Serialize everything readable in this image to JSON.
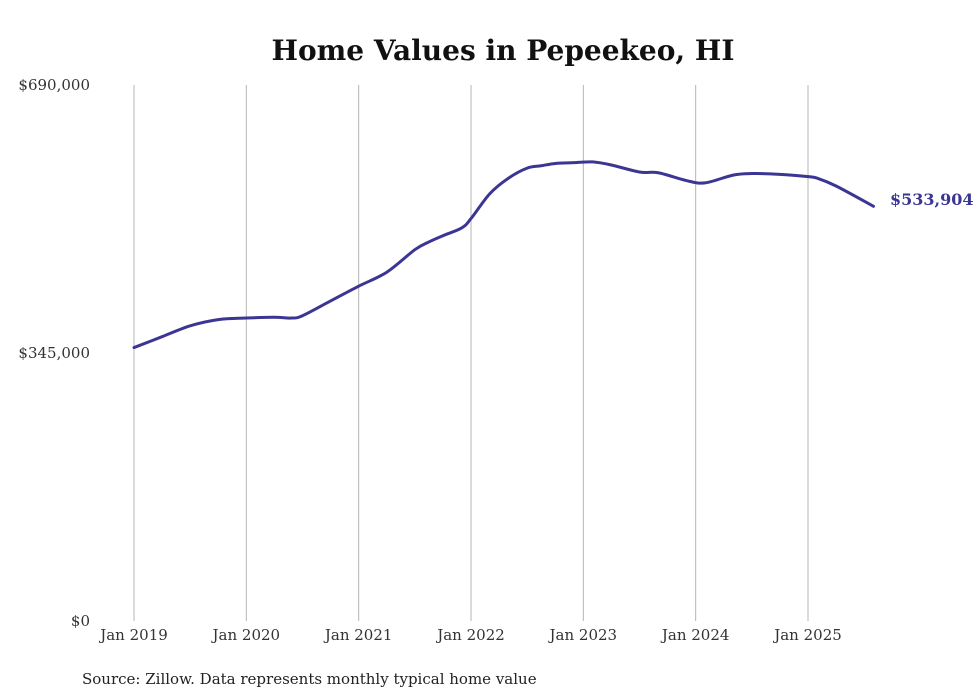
{
  "chart_data": {
    "type": "line",
    "title": "Home Values in Pepeekeo, HI",
    "xlabel": "",
    "ylabel": "",
    "ylim": [
      0,
      690000
    ],
    "y_ticks": [
      {
        "value": 0,
        "label": "$0"
      },
      {
        "value": 345000,
        "label": "$345,000"
      },
      {
        "value": 690000,
        "label": "$690,000"
      }
    ],
    "x_ticks": [
      {
        "value": 2019.0,
        "label": "Jan 2019"
      },
      {
        "value": 2020.0,
        "label": "Jan 2020"
      },
      {
        "value": 2021.0,
        "label": "Jan 2021"
      },
      {
        "value": 2022.0,
        "label": "Jan 2022"
      },
      {
        "value": 2023.0,
        "label": "Jan 2023"
      },
      {
        "value": 2024.0,
        "label": "Jan 2024"
      },
      {
        "value": 2025.0,
        "label": "Jan 2025"
      }
    ],
    "xlim": [
      2019.0,
      2025.583
    ],
    "grid": "vertical",
    "series": [
      {
        "name": "Typical home value",
        "color": "#3b3593",
        "x": [
          2019.0,
          2019.25,
          2019.5,
          2019.75,
          2020.0,
          2020.25,
          2020.4,
          2020.5,
          2020.75,
          2021.0,
          2021.25,
          2021.5,
          2021.625,
          2021.75,
          2021.917,
          2022.0,
          2022.167,
          2022.333,
          2022.5,
          2022.625,
          2022.75,
          2022.917,
          2023.083,
          2023.25,
          2023.5,
          2023.667,
          2023.917,
          2024.083,
          2024.333,
          2024.5,
          2024.75,
          2025.0,
          2025.083,
          2025.25,
          2025.583
        ],
        "values": [
          352000,
          366000,
          380000,
          388000,
          390000,
          391000,
          390000,
          393000,
          412000,
          431000,
          449000,
          478000,
          488000,
          496000,
          506000,
          518000,
          550000,
          570000,
          583000,
          586000,
          589000,
          590000,
          591000,
          587000,
          578000,
          577000,
          567000,
          564000,
          574000,
          576000,
          575000,
          572000,
          570000,
          560000,
          533904
        ]
      }
    ],
    "end_label": "$533,904",
    "source_text": "Source: Zillow. Data represents monthly typical home value"
  }
}
